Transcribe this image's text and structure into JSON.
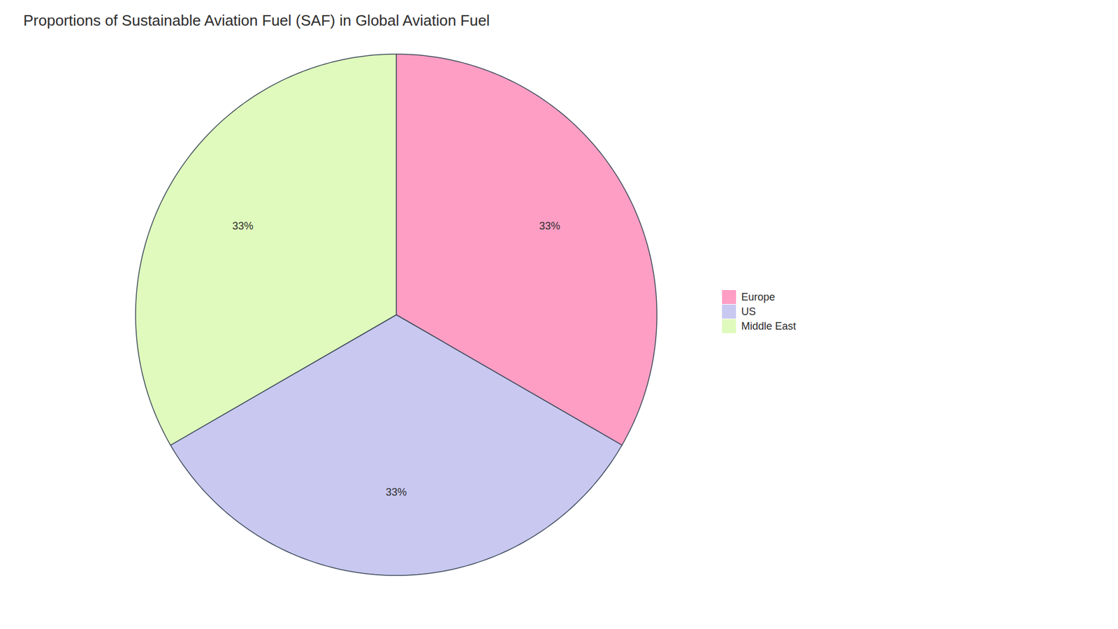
{
  "chart_data": {
    "type": "pie",
    "title": "Proportions of Sustainable Aviation Fuel (SAF) in Global Aviation Fuel",
    "categories": [
      "Europe",
      "US",
      "Middle East"
    ],
    "values": [
      33,
      33,
      33
    ],
    "value_labels": [
      "33%",
      "33%",
      "33%"
    ],
    "colors": [
      "#FF9EC4",
      "#C8C8F0",
      "#DFFABC"
    ],
    "data_labels": true,
    "legend": "right"
  }
}
